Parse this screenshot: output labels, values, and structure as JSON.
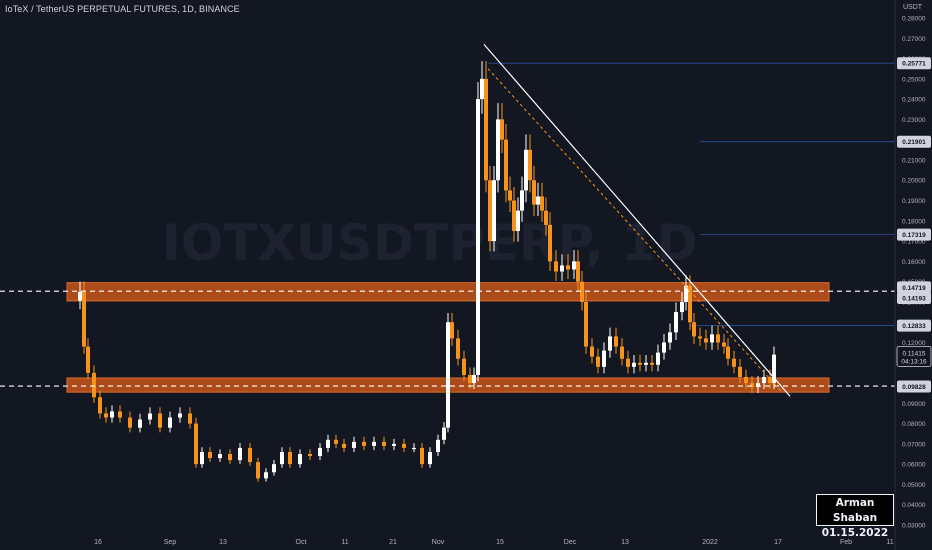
{
  "header": {
    "title": "IoTeX / TetherUS PERPETUAL FUTURES, 1D, BINANCE"
  },
  "price_axis_unit": "USDT",
  "watermark": "IOTXUSDTPERP, 1D",
  "signature": {
    "name": "Arman Shaban",
    "date": "01.15.2022"
  },
  "colors": {
    "background": "#131722",
    "up_candle": "#ffffff",
    "down_candle": "#f7931a",
    "zone": "#c9561a",
    "trendline": "#ffffff",
    "dashed_line": "#ffffff",
    "level_line": "#2a4d9b"
  },
  "chart_data": {
    "type": "candlestick",
    "title": "IoTeX / TetherUS PERPETUAL FUTURES, 1D, BINANCE",
    "y_unit": "USDT",
    "ylim": [
      0.03,
      0.28
    ],
    "y_ticks": [
      "0.28000",
      "0.27000",
      "0.26000",
      "0.25000",
      "0.24000",
      "0.23000",
      "0.22000",
      "0.21000",
      "0.20000",
      "0.19000",
      "0.18000",
      "0.17000",
      "0.16000",
      "0.15000",
      "0.14000",
      "0.13000",
      "0.12000",
      "0.11000",
      "0.10000",
      "0.09000",
      "0.08000",
      "0.07000",
      "0.06000",
      "0.05000",
      "0.04000",
      "0.03000"
    ],
    "x_ticks": [
      "16",
      "Sep",
      "13",
      "Oct",
      "11",
      "21",
      "Nov",
      "15",
      "Dec",
      "13",
      "2022",
      "17",
      "Feb",
      "11"
    ],
    "price_labels": [
      {
        "text": "0.25771",
        "value": 0.25771
      },
      {
        "text": "0.21901",
        "value": 0.21901
      },
      {
        "text": "0.17319",
        "value": 0.17319
      },
      {
        "text": "0.14719",
        "value": 0.14719
      },
      {
        "text": "0.14193",
        "value": 0.14193
      },
      {
        "text": "0.12833",
        "value": 0.12833
      },
      {
        "text": "0.09828",
        "value": 0.09828
      }
    ],
    "current_price": {
      "text": "0.11415",
      "countdown": "04:13:16",
      "value": 0.11415
    },
    "zones": [
      {
        "from": 0.1405,
        "to": 0.1495
      },
      {
        "from": 0.0955,
        "to": 0.1025
      }
    ],
    "dashed_levels": [
      0.1453,
      0.0985
    ],
    "level_lines": [
      0.25771,
      0.21901,
      0.17319,
      0.12833
    ],
    "trendline": {
      "from": {
        "x": 0,
        "y": 0.267
      },
      "to": {
        "x": 1,
        "y": 0.0935
      }
    },
    "candles_start": "early Aug 2021",
    "candles_end": "15 Jan 2022"
  }
}
